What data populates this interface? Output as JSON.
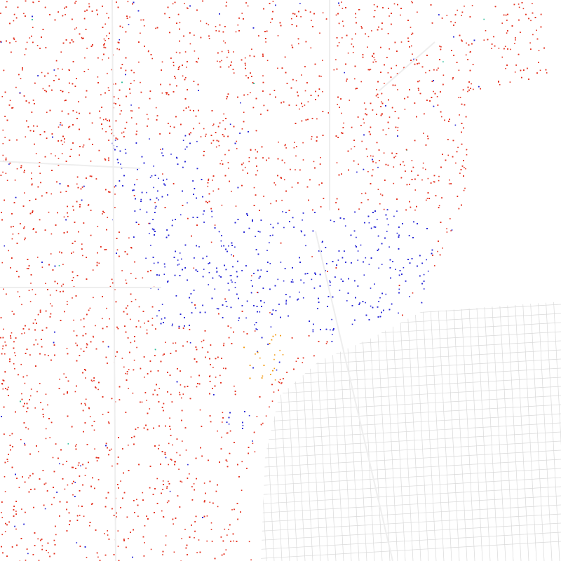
{
  "layers": [
    {
      "color": "#e3301e"
    },
    {
      "color": "#2424d4"
    },
    {
      "color": "#f29a12"
    },
    {
      "color": "#2bbf9a"
    }
  ]
}
